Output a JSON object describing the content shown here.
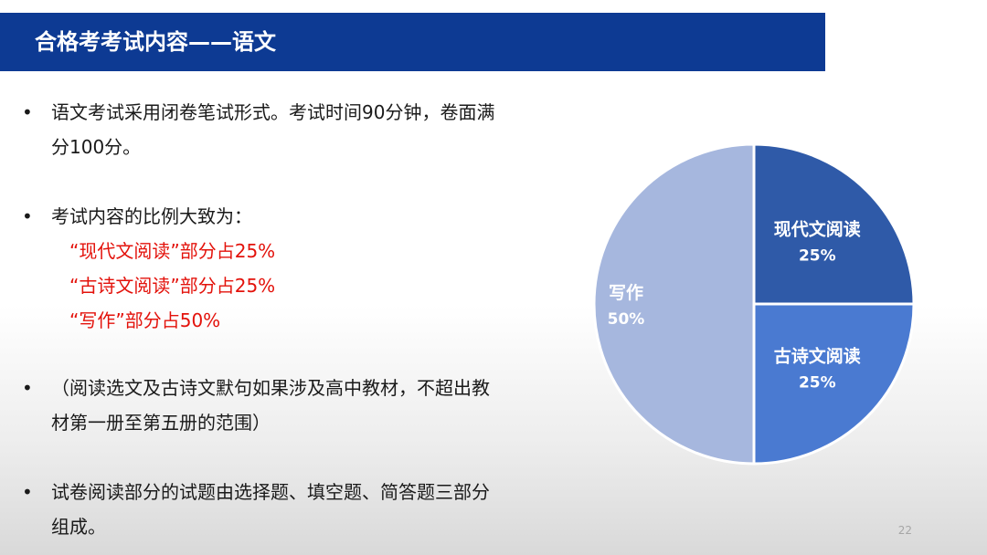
{
  "title": "合格考考试内容——语文",
  "bullets": [
    {
      "lines": [
        "语文考试采用闭卷笔试形式。考试时间90分钟，卷面满",
        "分100分。"
      ]
    },
    {
      "lines": [
        "考试内容的比例大致为："
      ],
      "red_lines": [
        "“现代文阅读”部分占25%",
        "“古诗文阅读”部分占25%",
        "“写作”部分占50%"
      ]
    },
    {
      "lines": [
        "（阅读选文及古诗文默句如果涉及高中教材，不超出教",
        "材第一册至第五册的范围）"
      ]
    },
    {
      "lines": [
        "试卷阅读部分的试题由选择题、填空题、简答题三部分",
        "组成。"
      ]
    }
  ],
  "bullet_symbol": "•",
  "page_number": "22",
  "colors": {
    "title_bar": "#0d3a93",
    "red_text": "#e3120b"
  },
  "chart_data": {
    "type": "pie",
    "slices": [
      {
        "label": "现代文阅读",
        "value": 25,
        "value_label": "25%",
        "color": "#2f5aa8"
      },
      {
        "label": "古诗文阅读",
        "value": 25,
        "value_label": "25%",
        "color": "#4a7ad1"
      },
      {
        "label": "写作",
        "value": 50,
        "value_label": "50%",
        "color": "#a6b7de"
      }
    ],
    "start": "12 o'clock",
    "direction": "clockwise",
    "legend": "none"
  }
}
